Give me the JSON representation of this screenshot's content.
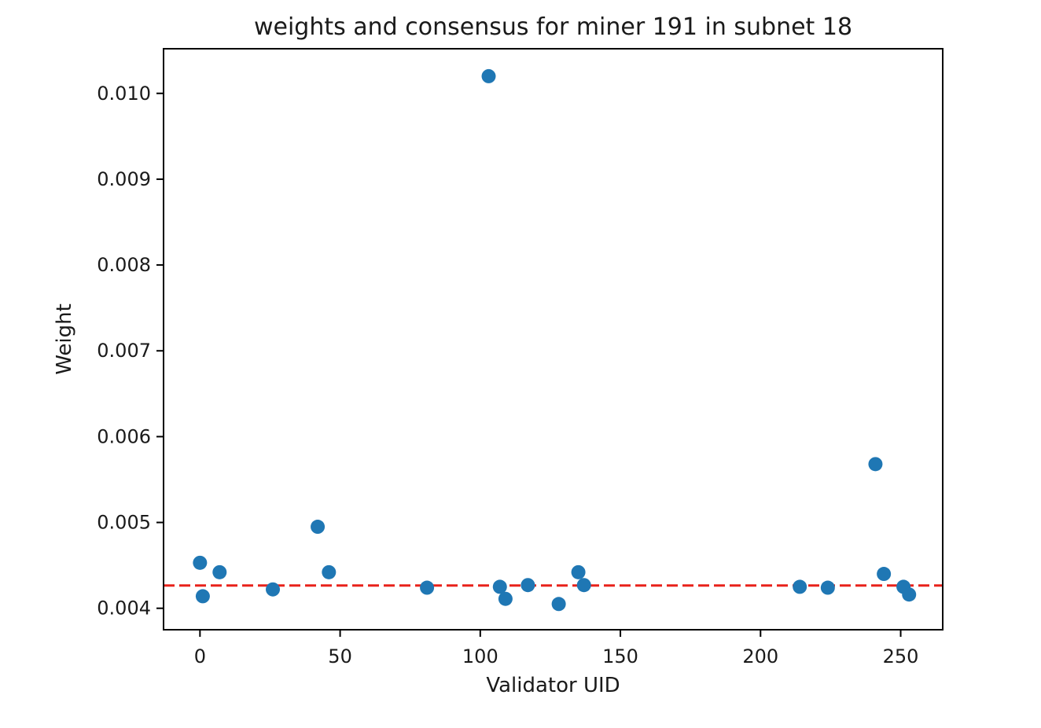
{
  "chart_data": {
    "type": "scatter",
    "title": "weights and consensus for miner 191 in subnet 18",
    "xlabel": "Validator UID",
    "ylabel": "Weight",
    "xlim": [
      -13,
      265
    ],
    "ylim": [
      0.00375,
      0.01052
    ],
    "x_ticks": [
      0,
      50,
      100,
      150,
      200,
      250
    ],
    "x_tick_labels": [
      "0",
      "50",
      "100",
      "150",
      "200",
      "250"
    ],
    "y_ticks": [
      0.004,
      0.005,
      0.006,
      0.007,
      0.008,
      0.009,
      0.01
    ],
    "y_tick_labels": [
      "0.004",
      "0.005",
      "0.006",
      "0.007",
      "0.008",
      "0.009",
      "0.010"
    ],
    "grid": false,
    "series": [
      {
        "marker_color": "#1f77b4",
        "points": [
          {
            "x": 0,
            "y": 0.00453
          },
          {
            "x": 1,
            "y": 0.00414
          },
          {
            "x": 7,
            "y": 0.00442
          },
          {
            "x": 26,
            "y": 0.00422
          },
          {
            "x": 42,
            "y": 0.00495
          },
          {
            "x": 46,
            "y": 0.00442
          },
          {
            "x": 81,
            "y": 0.00424
          },
          {
            "x": 103,
            "y": 0.0102
          },
          {
            "x": 107,
            "y": 0.00425
          },
          {
            "x": 109,
            "y": 0.00411
          },
          {
            "x": 117,
            "y": 0.00427
          },
          {
            "x": 128,
            "y": 0.00405
          },
          {
            "x": 135,
            "y": 0.00442
          },
          {
            "x": 137,
            "y": 0.00427
          },
          {
            "x": 214,
            "y": 0.00425
          },
          {
            "x": 224,
            "y": 0.00424
          },
          {
            "x": 241,
            "y": 0.00568
          },
          {
            "x": 244,
            "y": 0.0044
          },
          {
            "x": 251,
            "y": 0.00425
          },
          {
            "x": 253,
            "y": 0.00416
          }
        ]
      }
    ],
    "reference_lines": [
      {
        "orientation": "horizontal",
        "y": 0.004265,
        "color": "#e8221b",
        "style": "dashed"
      }
    ]
  }
}
